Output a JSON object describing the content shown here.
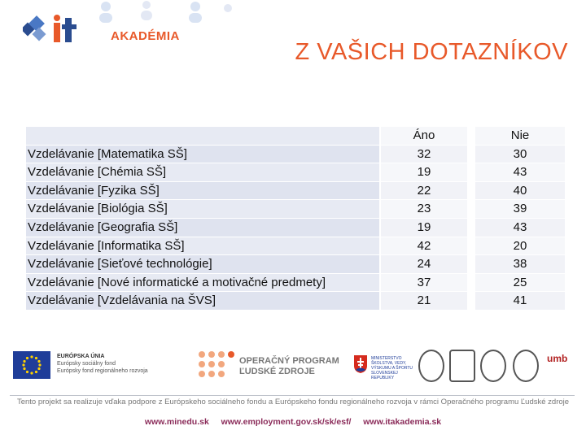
{
  "header": {
    "logo_text": "AKADÉMIA",
    "logo_mark": "it",
    "title": "Z VAŠICH DOTAZNÍKOV"
  },
  "table": {
    "columns": [
      "",
      "Áno",
      "Nie"
    ],
    "rows": [
      {
        "label": "Vzdelávanie [Matematika SŠ]",
        "ano": "32",
        "nie": "30"
      },
      {
        "label": "Vzdelávanie [Chémia SŠ]",
        "ano": "19",
        "nie": "43"
      },
      {
        "label": "Vzdelávanie [Fyzika SŠ]",
        "ano": "22",
        "nie": "40"
      },
      {
        "label": "Vzdelávanie [Biológia SŠ]",
        "ano": "23",
        "nie": "39"
      },
      {
        "label": "Vzdelávanie [Geografia SŠ]",
        "ano": "19",
        "nie": "43"
      },
      {
        "label": "Vzdelávanie [Informatika SŠ]",
        "ano": "42",
        "nie": "20"
      },
      {
        "label": "Vzdelávanie [Sieťové technológie]",
        "ano": "24",
        "nie": "38"
      },
      {
        "label": "Vzdelávanie [Nové informatické a motivačné predmety]",
        "ano": "37",
        "nie": "25"
      },
      {
        "label": "Vzdelávanie [Vzdelávania na ŠVS]",
        "ano": "21",
        "nie": "41"
      }
    ]
  },
  "footer": {
    "eu_title": "EURÓPSKA ÚNIA",
    "eu_line1": "Európsky sociálny fond",
    "eu_line2": "Európsky fond regionálneho rozvoja",
    "op_line1": "OPERAČNÝ PROGRAM",
    "op_line2": "ĽUDSKÉ ZDROJE",
    "ministry": "MINISTERSTVO ŠKOLSTVA, VEDY, VÝSKUMU A ŠPORTU SLOVENSKEJ REPUBLIKY",
    "umb": "umb",
    "disclaimer": "Tento projekt sa realizuje vďaka podpore z Európskeho sociálneho fondu a Európskeho fondu regionálneho rozvoja v rámci Operačného programu Ľudské zdroje",
    "links": [
      "www.minedu.sk",
      "www.employment.gov.sk/sk/esf/",
      "www.itakademia.sk"
    ]
  },
  "colors": {
    "accent": "#e8592a",
    "brand_blue": "#1f3d99",
    "table_label_bg": "#dfe3ef",
    "table_value_bg": "#f1f2f7",
    "link": "#8b2c5a"
  }
}
